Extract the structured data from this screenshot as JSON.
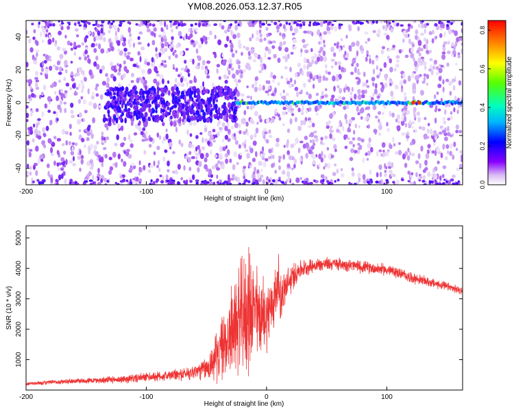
{
  "title": "YM08.2026.053.12.37.R05",
  "chart_data": [
    {
      "type": "heatmap",
      "title": "YM08.2026.053.12.37.R05",
      "xlabel": "Height of straight line (km)",
      "ylabel": "Frequency (Hz)",
      "xlim": [
        -200,
        163
      ],
      "ylim": [
        -50,
        50
      ],
      "xticks": [
        -200,
        -100,
        0,
        100
      ],
      "yticks": [
        -40,
        -20,
        0,
        20,
        40
      ],
      "colorbar": {
        "label": "Normalized spectral amplitude",
        "range": [
          0,
          0.85
        ],
        "ticks": [
          0.0,
          0.2,
          0.4,
          0.6,
          0.8
        ],
        "ticklabels": [
          "0.0",
          "0.2",
          "0.4",
          "0.6",
          "0.8"
        ],
        "colormap": "rainbow (white-purple-blue-cyan-green-yellow-orange-red)"
      },
      "features": [
        {
          "description": "sparse purple noise speckle across full frequency range",
          "x_range": [
            -200,
            163
          ],
          "y_range": [
            -50,
            50
          ],
          "amplitude": 0.05
        },
        {
          "description": "dense purple/blue cluster near 0 Hz",
          "x_range": [
            -130,
            -30
          ],
          "y_range": [
            -10,
            8
          ],
          "amplitude": 0.15
        },
        {
          "description": "continuous narrow band at 0 Hz",
          "x_range": [
            -25,
            163
          ],
          "y_range": [
            -1.5,
            1.5
          ],
          "amplitude": 0.3
        },
        {
          "description": "peak red spots in 0 Hz band",
          "x": [
            122,
            127
          ],
          "y": 0,
          "amplitude": 0.8
        },
        {
          "description": "bright band at frequency edges",
          "x_range": [
            -200,
            163
          ],
          "y_range": [
            48,
            50
          ],
          "amplitude": 0.1
        }
      ]
    },
    {
      "type": "line",
      "xlabel": "Height of straight line (km)",
      "ylabel": "SNR (10 * v/v)",
      "xlim": [
        -200,
        163
      ],
      "ylim": [
        0,
        5400
      ],
      "xticks": [
        -200,
        -100,
        0,
        100
      ],
      "yticks": [
        1000,
        2000,
        3000,
        4000,
        5000
      ],
      "series": [
        {
          "name": "SNR",
          "color": "#ee3333",
          "x": [
            -200,
            -180,
            -160,
            -140,
            -120,
            -100,
            -90,
            -80,
            -70,
            -60,
            -50,
            -45,
            -40,
            -35,
            -30,
            -25,
            -20,
            -15,
            -12,
            -10,
            -5,
            0,
            5,
            8,
            10,
            12,
            15,
            20,
            25,
            30,
            40,
            50,
            60,
            70,
            80,
            90,
            100,
            110,
            120,
            130,
            140,
            150,
            163
          ],
          "values": [
            200,
            250,
            300,
            320,
            350,
            420,
            450,
            480,
            520,
            600,
            700,
            900,
            1200,
            1500,
            1900,
            2200,
            2400,
            2600,
            2700,
            2600,
            2400,
            2500,
            2800,
            3300,
            3500,
            3000,
            3300,
            3600,
            3900,
            4000,
            4100,
            4150,
            4150,
            4100,
            4050,
            4000,
            3950,
            3850,
            3700,
            3600,
            3500,
            3400,
            3250
          ],
          "noise": [
            50,
            60,
            70,
            80,
            100,
            120,
            130,
            140,
            160,
            200,
            300,
            500,
            700,
            900,
            1100,
            1300,
            1500,
            1600,
            1500,
            1300,
            1100,
            900,
            800,
            800,
            700,
            600,
            500,
            400,
            300,
            220,
            180,
            170,
            160,
            160,
            160,
            150,
            150,
            140,
            140,
            130,
            120,
            110,
            100
          ]
        }
      ]
    }
  ]
}
